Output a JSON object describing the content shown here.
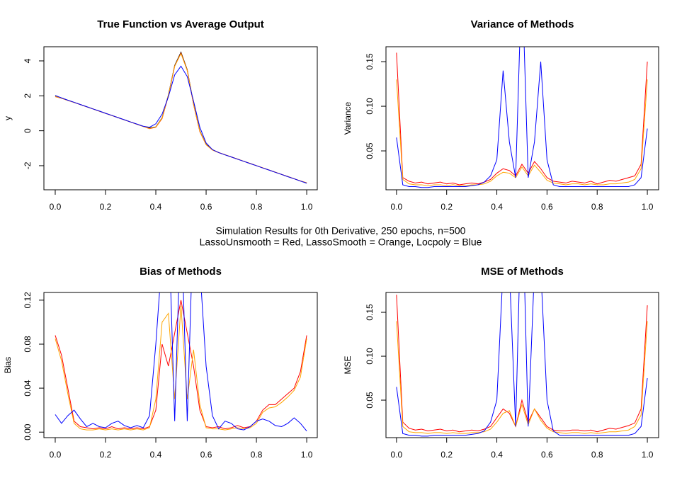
{
  "chart_data": [
    {
      "type": "line",
      "title": "True Function vs Average Output",
      "y_label": "y",
      "x": [
        0,
        0.025,
        0.05,
        0.075,
        0.1,
        0.125,
        0.15,
        0.175,
        0.2,
        0.225,
        0.25,
        0.275,
        0.3,
        0.325,
        0.35,
        0.375,
        0.4,
        0.425,
        0.45,
        0.475,
        0.5,
        0.525,
        0.55,
        0.575,
        0.6,
        0.625,
        0.65,
        0.675,
        0.7,
        0.725,
        0.75,
        0.775,
        0.8,
        0.825,
        0.85,
        0.875,
        0.9,
        0.925,
        0.95,
        0.975,
        1
      ],
      "xlim": [
        -0.045,
        1.042
      ],
      "xticks": [
        {
          "value": 0,
          "label": "0.0"
        },
        0.2,
        0.4,
        0.6,
        0.8,
        {
          "value": 1,
          "label": "1.0"
        }
      ],
      "ylim": [
        -3.38,
        4.81
      ],
      "yticks": [
        -2,
        0,
        2,
        4
      ],
      "series": [
        {
          "color": "#000000",
          "values": [
            2,
            1.875,
            1.75,
            1.625,
            1.5,
            1.375,
            1.25,
            1.125,
            1,
            0.875,
            0.75,
            0.625,
            0.5,
            0.375,
            0.25,
            0.16,
            0.22,
            0.74,
            2.05,
            3.74,
            4.5,
            3.49,
            1.55,
            -0.01,
            -0.78,
            -1.08,
            -1.25,
            -1.375,
            -1.5,
            -1.625,
            -1.75,
            -1.875,
            -2,
            -2.125,
            -2.25,
            -2.375,
            -2.5,
            -2.625,
            -2.75,
            -2.875,
            -3
          ]
        },
        {
          "color": "#ff0000",
          "values": [
            1.95,
            1.86,
            1.74,
            1.62,
            1.5,
            1.37,
            1.25,
            1.12,
            1,
            0.87,
            0.75,
            0.62,
            0.5,
            0.37,
            0.25,
            0.12,
            0.2,
            0.7,
            2,
            3.7,
            4.45,
            3.45,
            1.5,
            -0.05,
            -0.8,
            -1.1,
            -1.25,
            -1.37,
            -1.5,
            -1.62,
            -1.75,
            -1.87,
            -2,
            -2.12,
            -2.25,
            -2.37,
            -2.5,
            -2.62,
            -2.75,
            -2.87,
            -2.98
          ]
        },
        {
          "color": "#ffa500",
          "values": [
            1.96,
            1.86,
            1.74,
            1.62,
            1.5,
            1.37,
            1.25,
            1.12,
            1,
            0.87,
            0.75,
            0.62,
            0.5,
            0.37,
            0.25,
            0.13,
            0.21,
            0.72,
            2.02,
            3.7,
            4.42,
            3.45,
            1.52,
            -0.03,
            -0.8,
            -1.1,
            -1.25,
            -1.37,
            -1.5,
            -1.62,
            -1.75,
            -1.87,
            -2,
            -2.12,
            -2.25,
            -2.37,
            -2.5,
            -2.62,
            -2.75,
            -2.87,
            -2.98
          ]
        },
        {
          "color": "#0000ff",
          "values": [
            2.02,
            1.88,
            1.75,
            1.63,
            1.5,
            1.38,
            1.25,
            1.13,
            1,
            0.88,
            0.75,
            0.63,
            0.5,
            0.38,
            0.26,
            0.2,
            0.4,
            0.95,
            1.95,
            3.2,
            3.7,
            3.1,
            1.7,
            0.2,
            -0.7,
            -1.08,
            -1.25,
            -1.38,
            -1.5,
            -1.63,
            -1.75,
            -1.88,
            -2,
            -2.13,
            -2.25,
            -2.38,
            -2.5,
            -2.63,
            -2.75,
            -2.88,
            -3
          ]
        }
      ]
    },
    {
      "type": "line",
      "title": "Variance of Methods",
      "y_label": "Variance",
      "x": [
        0,
        0.025,
        0.05,
        0.075,
        0.1,
        0.125,
        0.15,
        0.175,
        0.2,
        0.225,
        0.25,
        0.275,
        0.3,
        0.325,
        0.35,
        0.375,
        0.4,
        0.425,
        0.45,
        0.475,
        0.5,
        0.525,
        0.55,
        0.575,
        0.6,
        0.625,
        0.65,
        0.675,
        0.7,
        0.725,
        0.75,
        0.775,
        0.8,
        0.825,
        0.85,
        0.875,
        0.9,
        0.925,
        0.95,
        0.975,
        1
      ],
      "xlim": [
        -0.042,
        1.045
      ],
      "xticks": [
        {
          "value": 0,
          "label": "0.0"
        },
        0.2,
        0.4,
        0.6,
        0.8,
        {
          "value": 1,
          "label": "1.0"
        }
      ],
      "ylim": [
        0.0064,
        0.1667
      ],
      "yticks": [
        0.05,
        {
          "value": 0.1,
          "label": "0.10"
        },
        0.15
      ],
      "series": [
        {
          "color": "#ff0000",
          "values": [
            0.16,
            0.02,
            0.016,
            0.014,
            0.015,
            0.013,
            0.014,
            0.015,
            0.013,
            0.014,
            0.012,
            0.013,
            0.014,
            0.013,
            0.015,
            0.018,
            0.025,
            0.03,
            0.028,
            0.022,
            0.035,
            0.025,
            0.038,
            0.03,
            0.02,
            0.016,
            0.015,
            0.014,
            0.016,
            0.015,
            0.014,
            0.016,
            0.013,
            0.015,
            0.017,
            0.016,
            0.018,
            0.02,
            0.022,
            0.035,
            0.15
          ]
        },
        {
          "color": "#ffa500",
          "values": [
            0.13,
            0.018,
            0.013,
            0.012,
            0.012,
            0.011,
            0.012,
            0.012,
            0.011,
            0.012,
            0.011,
            0.011,
            0.012,
            0.012,
            0.013,
            0.016,
            0.022,
            0.026,
            0.025,
            0.02,
            0.032,
            0.022,
            0.034,
            0.026,
            0.017,
            0.014,
            0.013,
            0.012,
            0.013,
            0.013,
            0.012,
            0.013,
            0.012,
            0.012,
            0.013,
            0.013,
            0.014,
            0.015,
            0.018,
            0.03,
            0.13
          ]
        },
        {
          "color": "#0000ff",
          "values": [
            0.065,
            0.012,
            0.01,
            0.01,
            0.009,
            0.009,
            0.01,
            0.01,
            0.01,
            0.01,
            0.01,
            0.01,
            0.011,
            0.012,
            0.015,
            0.022,
            0.04,
            0.14,
            0.06,
            0.02,
            0.25,
            0.02,
            0.06,
            0.15,
            0.04,
            0.012,
            0.01,
            0.01,
            0.01,
            0.01,
            0.01,
            0.01,
            0.01,
            0.01,
            0.01,
            0.01,
            0.01,
            0.01,
            0.012,
            0.02,
            0.075
          ]
        }
      ]
    },
    {
      "type": "line",
      "title": "Bias of Methods",
      "y_label": "Bias",
      "x": [
        0,
        0.025,
        0.05,
        0.075,
        0.1,
        0.125,
        0.15,
        0.175,
        0.2,
        0.225,
        0.25,
        0.275,
        0.3,
        0.325,
        0.35,
        0.375,
        0.4,
        0.425,
        0.45,
        0.475,
        0.5,
        0.525,
        0.55,
        0.575,
        0.6,
        0.625,
        0.65,
        0.675,
        0.7,
        0.725,
        0.75,
        0.775,
        0.8,
        0.825,
        0.85,
        0.875,
        0.9,
        0.925,
        0.95,
        0.975,
        1
      ],
      "xlim": [
        -0.045,
        1.042
      ],
      "xticks": [
        {
          "value": 0,
          "label": "0.0"
        },
        0.2,
        0.4,
        0.6,
        0.8,
        {
          "value": 1,
          "label": "1.0"
        }
      ],
      "ylim": [
        -0.005,
        0.127
      ],
      "yticks": [
        {
          "value": 0,
          "label": "0.00"
        },
        0.04,
        0.08,
        0.12
      ],
      "series": [
        {
          "color": "#ff0000",
          "values": [
            0.088,
            0.07,
            0.04,
            0.01,
            0.005,
            0.004,
            0.003,
            0.004,
            0.003,
            0.005,
            0.003,
            0.004,
            0.003,
            0.004,
            0.003,
            0.005,
            0.02,
            0.08,
            0.06,
            0.09,
            0.12,
            0.09,
            0.06,
            0.02,
            0.005,
            0.004,
            0.005,
            0.003,
            0.004,
            0.006,
            0.004,
            0.005,
            0.01,
            0.02,
            0.025,
            0.025,
            0.03,
            0.035,
            0.04,
            0.055,
            0.088
          ]
        },
        {
          "color": "#ffa500",
          "values": [
            0.085,
            0.065,
            0.035,
            0.008,
            0.003,
            0.002,
            0.002,
            0.003,
            0.002,
            0.003,
            0.002,
            0.003,
            0.002,
            0.003,
            0.002,
            0.004,
            0.03,
            0.1,
            0.108,
            0.03,
            0.115,
            0.03,
            0.075,
            0.025,
            0.004,
            0.003,
            0.003,
            0.002,
            0.003,
            0.004,
            0.003,
            0.004,
            0.008,
            0.018,
            0.022,
            0.023,
            0.027,
            0.032,
            0.038,
            0.05,
            0.085
          ]
        },
        {
          "color": "#0000ff",
          "values": [
            0.016,
            0.008,
            0.015,
            0.02,
            0.012,
            0.005,
            0.008,
            0.005,
            0.004,
            0.008,
            0.01,
            0.006,
            0.004,
            0.006,
            0.004,
            0.015,
            0.08,
            0.16,
            0.2,
            0.01,
            0.2,
            0.01,
            0.2,
            0.15,
            0.06,
            0.015,
            0.003,
            0.01,
            0.008,
            0.003,
            0.002,
            0.005,
            0.01,
            0.012,
            0.01,
            0.006,
            0.005,
            0.008,
            0.013,
            0.008,
            0.001
          ]
        }
      ]
    },
    {
      "type": "line",
      "title": "MSE of Methods",
      "y_label": "MSE",
      "x": [
        0,
        0.025,
        0.05,
        0.075,
        0.1,
        0.125,
        0.15,
        0.175,
        0.2,
        0.225,
        0.25,
        0.275,
        0.3,
        0.325,
        0.35,
        0.375,
        0.4,
        0.425,
        0.45,
        0.475,
        0.5,
        0.525,
        0.55,
        0.575,
        0.6,
        0.625,
        0.65,
        0.675,
        0.7,
        0.725,
        0.75,
        0.775,
        0.8,
        0.825,
        0.85,
        0.875,
        0.9,
        0.925,
        0.95,
        0.975,
        1
      ],
      "xlim": [
        -0.042,
        1.045
      ],
      "xticks": [
        {
          "value": 0,
          "label": "0.0"
        },
        0.2,
        0.4,
        0.6,
        0.8,
        {
          "value": 1,
          "label": "1.0"
        }
      ],
      "ylim": [
        0.0073,
        0.1726
      ],
      "yticks": [
        0.05,
        {
          "value": 0.1,
          "label": "0.10"
        },
        0.15
      ],
      "series": [
        {
          "color": "#ff0000",
          "values": [
            0.17,
            0.025,
            0.018,
            0.016,
            0.017,
            0.015,
            0.016,
            0.017,
            0.015,
            0.016,
            0.014,
            0.015,
            0.016,
            0.015,
            0.017,
            0.02,
            0.03,
            0.04,
            0.035,
            0.02,
            0.05,
            0.025,
            0.04,
            0.03,
            0.02,
            0.016,
            0.015,
            0.015,
            0.016,
            0.016,
            0.015,
            0.016,
            0.014,
            0.016,
            0.018,
            0.017,
            0.019,
            0.021,
            0.024,
            0.04,
            0.158
          ]
        },
        {
          "color": "#ffa500",
          "values": [
            0.14,
            0.02,
            0.014,
            0.013,
            0.013,
            0.012,
            0.013,
            0.013,
            0.012,
            0.013,
            0.012,
            0.012,
            0.013,
            0.013,
            0.014,
            0.017,
            0.025,
            0.035,
            0.038,
            0.02,
            0.045,
            0.022,
            0.04,
            0.027,
            0.018,
            0.014,
            0.013,
            0.012,
            0.013,
            0.013,
            0.012,
            0.013,
            0.012,
            0.013,
            0.014,
            0.014,
            0.015,
            0.016,
            0.02,
            0.033,
            0.14
          ]
        },
        {
          "color": "#0000ff",
          "values": [
            0.065,
            0.012,
            0.01,
            0.01,
            0.009,
            0.009,
            0.01,
            0.01,
            0.01,
            0.01,
            0.01,
            0.01,
            0.011,
            0.012,
            0.015,
            0.025,
            0.05,
            0.2,
            0.2,
            0.02,
            0.3,
            0.02,
            0.2,
            0.2,
            0.05,
            0.015,
            0.01,
            0.01,
            0.01,
            0.01,
            0.01,
            0.01,
            0.01,
            0.01,
            0.01,
            0.01,
            0.01,
            0.01,
            0.012,
            0.02,
            0.075
          ]
        }
      ]
    }
  ],
  "caption": [
    "Simulation Results for 0th Derivative, 250 epochs, n=500",
    "LassoUnsmooth = Red, LassoSmooth = Orange, Locpoly = Blue"
  ]
}
